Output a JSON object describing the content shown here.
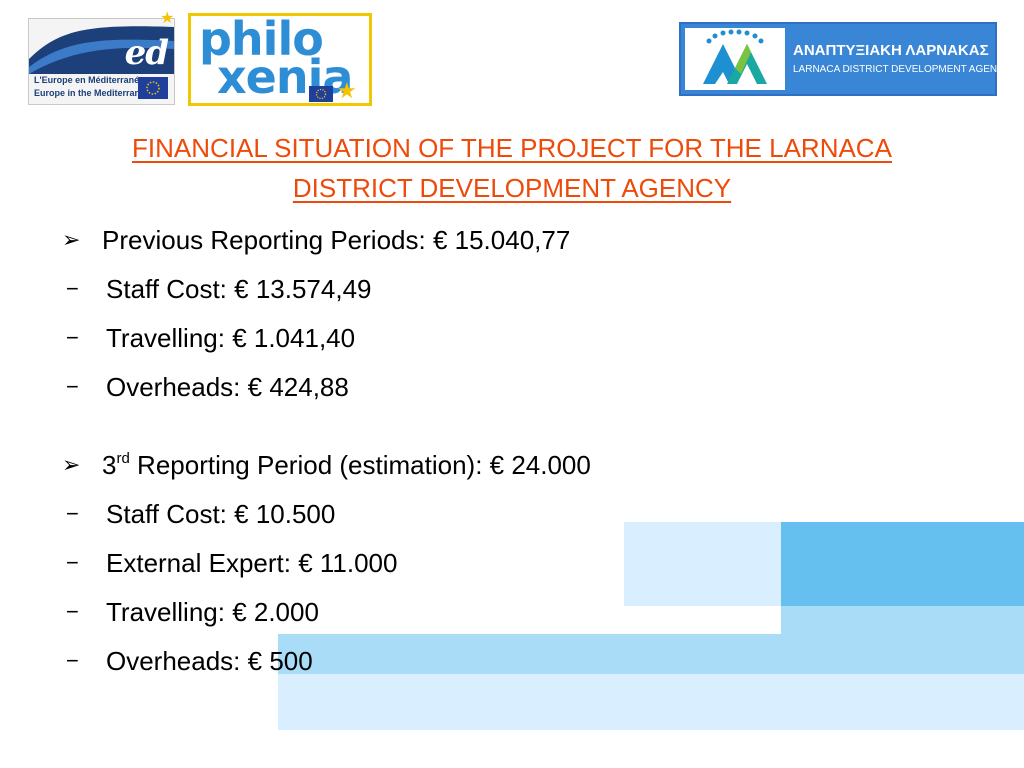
{
  "colors": {
    "title": "#ee4a0a",
    "text": "#000000",
    "deco_light": "#d9efff",
    "deco_medium": "#a9dcf6",
    "deco_strong": "#66c0ef",
    "med_blue": "#1d3f7a",
    "philo_blue": "#2d8ed6",
    "philo_border": "#f0c800",
    "agency_blue": "#3a86d6"
  },
  "logos": {
    "med": {
      "word": "ed",
      "line1": "L'Europe en Méditerranée",
      "line2": "Europe in the Mediterranean"
    },
    "philoxenia": {
      "word_top": "philo",
      "word_bottom": "xenia"
    },
    "agency": {
      "greek": "ΑΝΑΠΤΥΞΙΑΚΗ ΛΑΡΝΑΚΑΣ",
      "english": "LARNACA DISTRICT DEVELOPMENT AGENCY"
    }
  },
  "title": {
    "line1": "FINANCIAL SITUATION OF THE PROJECT FOR THE LARNACA",
    "line2": "DISTRICT DEVELOPMENT AGENCY"
  },
  "section1": {
    "marker": "➢",
    "heading": "Previous Reporting Periods: € 15.040,77",
    "items": [
      "Staff Cost: € 13.574,49",
      "Travelling: € 1.041,40",
      "Overheads: € 424,88"
    ]
  },
  "section2": {
    "marker": "➢",
    "heading_num": "3",
    "heading_sup": "rd",
    "heading_rest": " Reporting Period (estimation): € 24.000",
    "items": [
      "Staff Cost: € 10.500",
      "External Expert: € 11.000",
      "Travelling: € 2.000",
      "Overheads: € 500"
    ]
  },
  "dash": "−"
}
